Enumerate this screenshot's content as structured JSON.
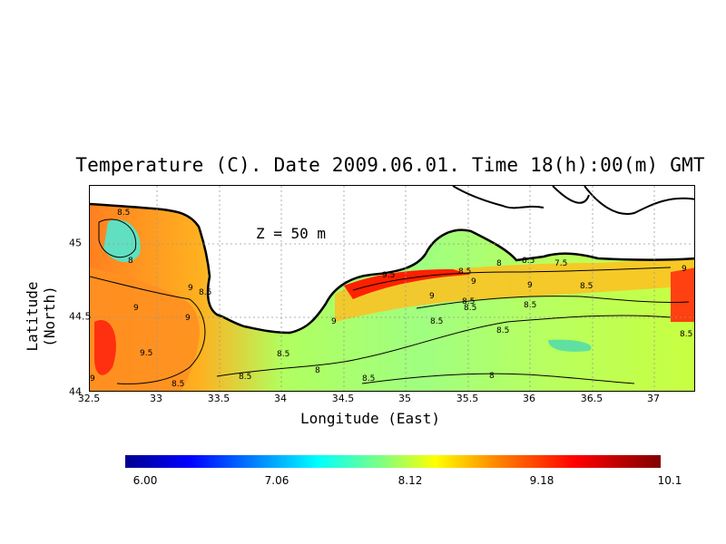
{
  "title": "Temperature (C). Date 2009.06.01. Time 18(h):00(m) GMT",
  "xlabel": "Longitude (East)",
  "ylabel": "Latitude (North)",
  "annotation": "Z = 50 m",
  "x_ticks": [
    "32.5",
    "33",
    "33.5",
    "34",
    "34.5",
    "35",
    "35.5",
    "36",
    "36.5",
    "37"
  ],
  "y_ticks": [
    "44",
    "44.5",
    "45"
  ],
  "colorbar": {
    "min": "6.00",
    "l1": "7.06",
    "l2": "8.12",
    "l3": "9.18",
    "max": "10.1"
  },
  "contour_labels": [
    "8.5",
    "8",
    "9",
    "8.5",
    "9",
    "9",
    "9.5",
    "9",
    "8.5",
    "8.5",
    "8.5",
    "8",
    "8.5",
    "8",
    "9",
    "9.5",
    "9",
    "8.5",
    "8.5",
    "9",
    "8.5",
    "8.5",
    "8.5",
    "8.5",
    "8.5",
    "8",
    "9",
    "7.5",
    "8.5",
    "9",
    "8.5"
  ],
  "colors": {
    "land": "#ffffff",
    "coast": "#000000"
  }
}
